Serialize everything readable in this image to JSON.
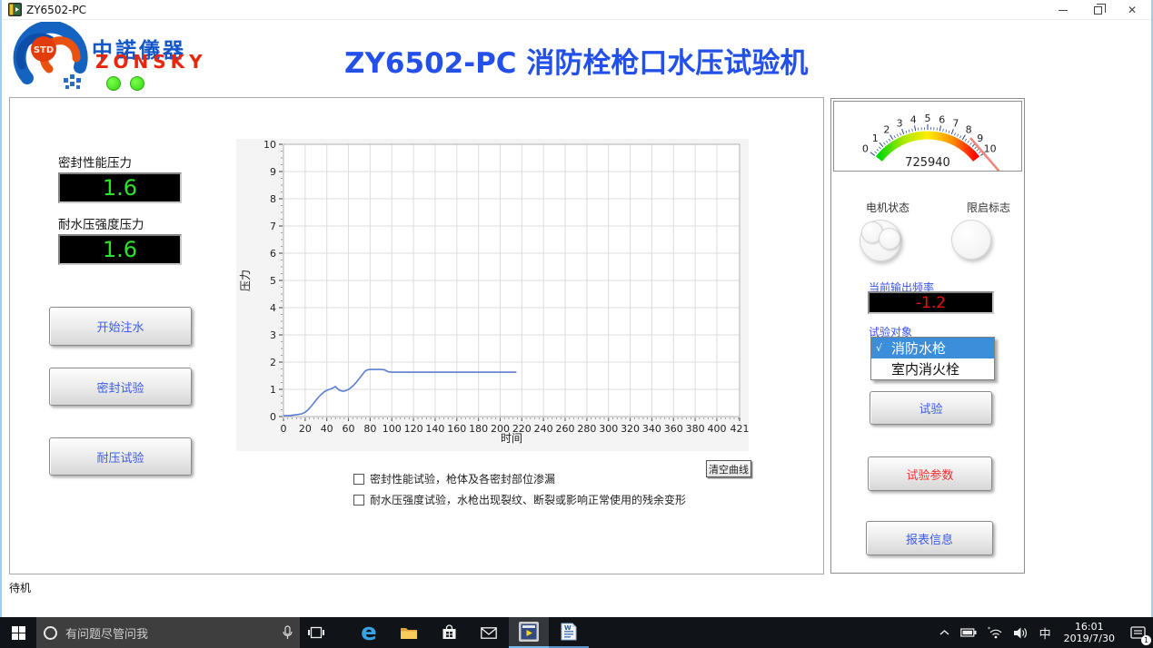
{
  "window": {
    "title": "ZY6502-PC",
    "controls": {
      "close_glyph": "✕"
    }
  },
  "header": {
    "logo": {
      "std": "STD",
      "brand_cn": "中諾儀器",
      "brand_en": "ZONSKY"
    },
    "title": "ZY6502-PC 消防栓枪口水压试验机"
  },
  "left_panel": {
    "seal_label": "密封性能压力",
    "seal_value": "1.6",
    "strength_label": "耐水压强度压力",
    "strength_value": "1.6",
    "buttons": {
      "start_fill": "开始注水",
      "seal_test": "密封试验",
      "pressure_test": "耐压试验"
    }
  },
  "chart_data": {
    "type": "line",
    "title": "",
    "xlabel": "时间",
    "ylabel": "压力",
    "xlim": [
      0,
      421
    ],
    "ylim": [
      0,
      10
    ],
    "x_ticks": [
      0,
      20,
      40,
      60,
      80,
      100,
      120,
      140,
      160,
      180,
      200,
      220,
      240,
      260,
      280,
      300,
      320,
      340,
      360,
      380,
      400,
      421
    ],
    "y_ticks": [
      0,
      1,
      2,
      3,
      4,
      5,
      6,
      7,
      8,
      9,
      10
    ],
    "grid": true,
    "legend": "none",
    "line_color": "#5b7fd0",
    "series": [
      {
        "name": "压力",
        "points": [
          [
            0,
            0.03
          ],
          [
            6,
            0.04
          ],
          [
            12,
            0.07
          ],
          [
            17,
            0.1
          ],
          [
            20,
            0.16
          ],
          [
            23,
            0.26
          ],
          [
            26,
            0.4
          ],
          [
            29,
            0.55
          ],
          [
            32,
            0.7
          ],
          [
            35,
            0.82
          ],
          [
            38,
            0.92
          ],
          [
            41,
            0.98
          ],
          [
            44,
            1.02
          ],
          [
            46,
            1.06
          ],
          [
            48,
            1.1
          ],
          [
            50,
            1.02
          ],
          [
            52,
            0.96
          ],
          [
            55,
            0.93
          ],
          [
            58,
            0.96
          ],
          [
            61,
            1.02
          ],
          [
            64,
            1.12
          ],
          [
            67,
            1.25
          ],
          [
            70,
            1.4
          ],
          [
            73,
            1.55
          ],
          [
            75,
            1.65
          ],
          [
            77,
            1.71
          ],
          [
            80,
            1.73
          ],
          [
            90,
            1.73
          ],
          [
            93,
            1.72
          ],
          [
            95,
            1.68
          ],
          [
            97,
            1.64
          ],
          [
            100,
            1.63
          ],
          [
            215,
            1.63
          ]
        ]
      }
    ]
  },
  "chart_area": {
    "clear_button": "清空曲线",
    "checkboxes": [
      {
        "label": "密封性能试验，枪体及各密封部位渗漏",
        "checked": false
      },
      {
        "label": "耐水压强度试验，水枪出现裂纹、断裂或影响正常使用的残余变形",
        "checked": false
      }
    ]
  },
  "right_panel": {
    "gauge": {
      "min": 0,
      "max": 10,
      "ticks": [
        0,
        1,
        2,
        3,
        4,
        5,
        6,
        7,
        8,
        9,
        10
      ],
      "value": "725940",
      "band_colors": [
        "#00d800",
        "#a8e800",
        "#ffee00",
        "#ff9000",
        "#ff0000"
      ],
      "needle_color": "#f2857a"
    },
    "motor_label": "电机状态",
    "limit_label": "限启标志",
    "freq_label": "当前输出频率",
    "freq_value": "-1.2",
    "object_label": "试验对象",
    "dropdown": {
      "options": [
        {
          "check": "√",
          "label": "消防水枪",
          "selected": true
        },
        {
          "check": "",
          "label": "室内消火栓",
          "selected": false
        }
      ]
    },
    "buttons": {
      "test": "试验",
      "params": "试验参数",
      "report": "报表信息"
    }
  },
  "status_bar": {
    "text": "待机"
  },
  "taskbar": {
    "search_text": "有问题尽管问我",
    "ime": "中",
    "clock": {
      "time": "16:01",
      "date": "2019/7/30"
    },
    "notification_badge": "1",
    "edge_glyph": "e",
    "word_glyph": "W"
  }
}
